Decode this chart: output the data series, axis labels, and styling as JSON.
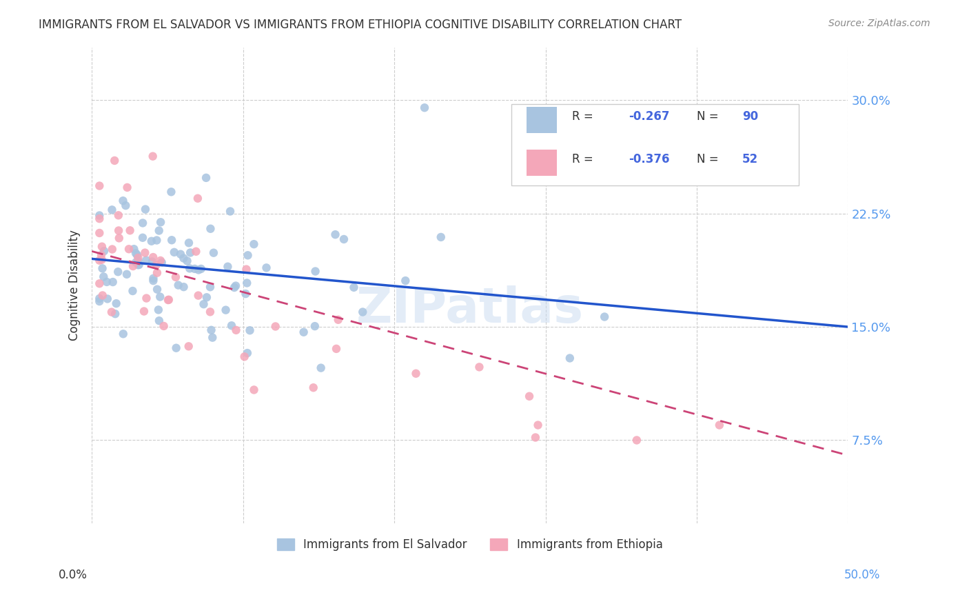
{
  "title": "IMMIGRANTS FROM EL SALVADOR VS IMMIGRANTS FROM ETHIOPIA COGNITIVE DISABILITY CORRELATION CHART",
  "source": "Source: ZipAtlas.com",
  "ylabel": "Cognitive Disability",
  "ytick_labels": [
    "30.0%",
    "22.5%",
    "15.0%",
    "7.5%"
  ],
  "ytick_values": [
    0.3,
    0.225,
    0.15,
    0.075
  ],
  "xlim": [
    0.0,
    0.5
  ],
  "ylim": [
    0.02,
    0.335
  ],
  "watermark": "ZIPatlas",
  "legend_R1": "R = -0.267",
  "legend_N1": "N = 90",
  "legend_R2": "R = -0.376",
  "legend_N2": "N = 52",
  "color_blue": "#a8c4e0",
  "color_pink": "#f4a7b9",
  "line_blue": "#2255cc",
  "line_pink": "#cc4477",
  "background": "#ffffff",
  "grid_color": "#cccccc"
}
